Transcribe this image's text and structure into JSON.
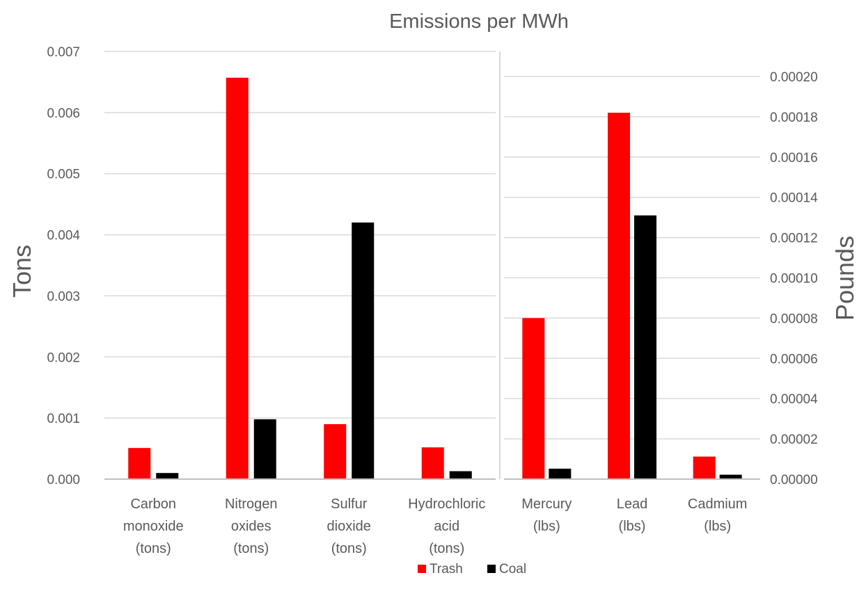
{
  "chart_data": {
    "type": "bar",
    "title": "Emissions per MWh",
    "legend": {
      "position": "bottom",
      "entries": [
        "Trash",
        "Coal"
      ]
    },
    "colors": {
      "Trash": "#ff0000",
      "Coal": "#000000"
    },
    "panels": [
      {
        "ylabel": "Tons",
        "ylim": [
          0,
          0.007
        ],
        "yticks": [
          "0.000",
          "0.001",
          "0.002",
          "0.003",
          "0.004",
          "0.005",
          "0.006",
          "0.007"
        ],
        "categories": [
          [
            "Carbon",
            "monoxide",
            "(tons)"
          ],
          [
            "Nitrogen",
            "oxides",
            "(tons)"
          ],
          [
            "Sulfur",
            "dioxide",
            "(tons)"
          ],
          [
            "Hydrochloric",
            "acid",
            "(tons)"
          ]
        ],
        "series": [
          {
            "name": "Trash",
            "values": [
              0.00051,
              0.00657,
              0.0009,
              0.00052
            ]
          },
          {
            "name": "Coal",
            "values": [
              0.0001,
              0.00098,
              0.0042,
              0.00013
            ]
          }
        ]
      },
      {
        "ylabel": "Pounds",
        "ylim": [
          0,
          0.0002
        ],
        "yticks": [
          "0.00000",
          "0.00002",
          "0.00004",
          "0.00006",
          "0.00008",
          "0.00010",
          "0.00012",
          "0.00014",
          "0.00016",
          "0.00018",
          "0.00020"
        ],
        "categories": [
          [
            "Mercury",
            "(lbs)"
          ],
          [
            "Lead",
            "(lbs)"
          ],
          [
            "Cadmium",
            "(lbs)"
          ]
        ],
        "series": [
          {
            "name": "Trash",
            "values": [
              8e-05,
              0.000182,
              1.12e-05
            ]
          },
          {
            "name": "Coal",
            "values": [
              5.2e-06,
              0.000131,
              2.2e-06
            ]
          }
        ]
      }
    ]
  }
}
